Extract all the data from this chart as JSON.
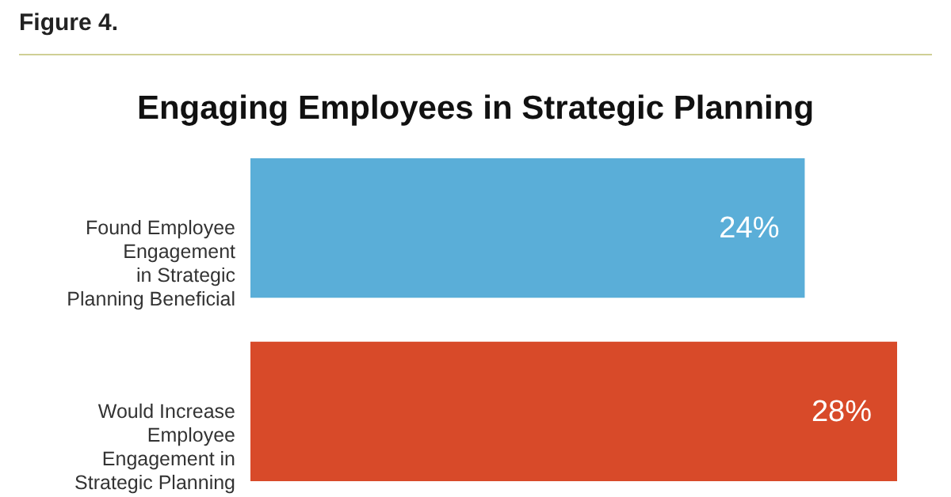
{
  "chart_data": {
    "type": "bar",
    "orientation": "horizontal",
    "title": "Engaging Employees in Strategic Planning",
    "annotations": [
      "Figure 4."
    ],
    "categories": [
      "Found Employee\nEngagement\nin Strategic\nPlanning Beneficial",
      "Would Increase\nEmployee\nEngagement in\nStrategic Planning"
    ],
    "values": [
      24,
      28
    ],
    "colors": [
      "#5aaed8",
      "#d84a29"
    ],
    "value_labels": [
      "24%",
      "28%"
    ]
  }
}
